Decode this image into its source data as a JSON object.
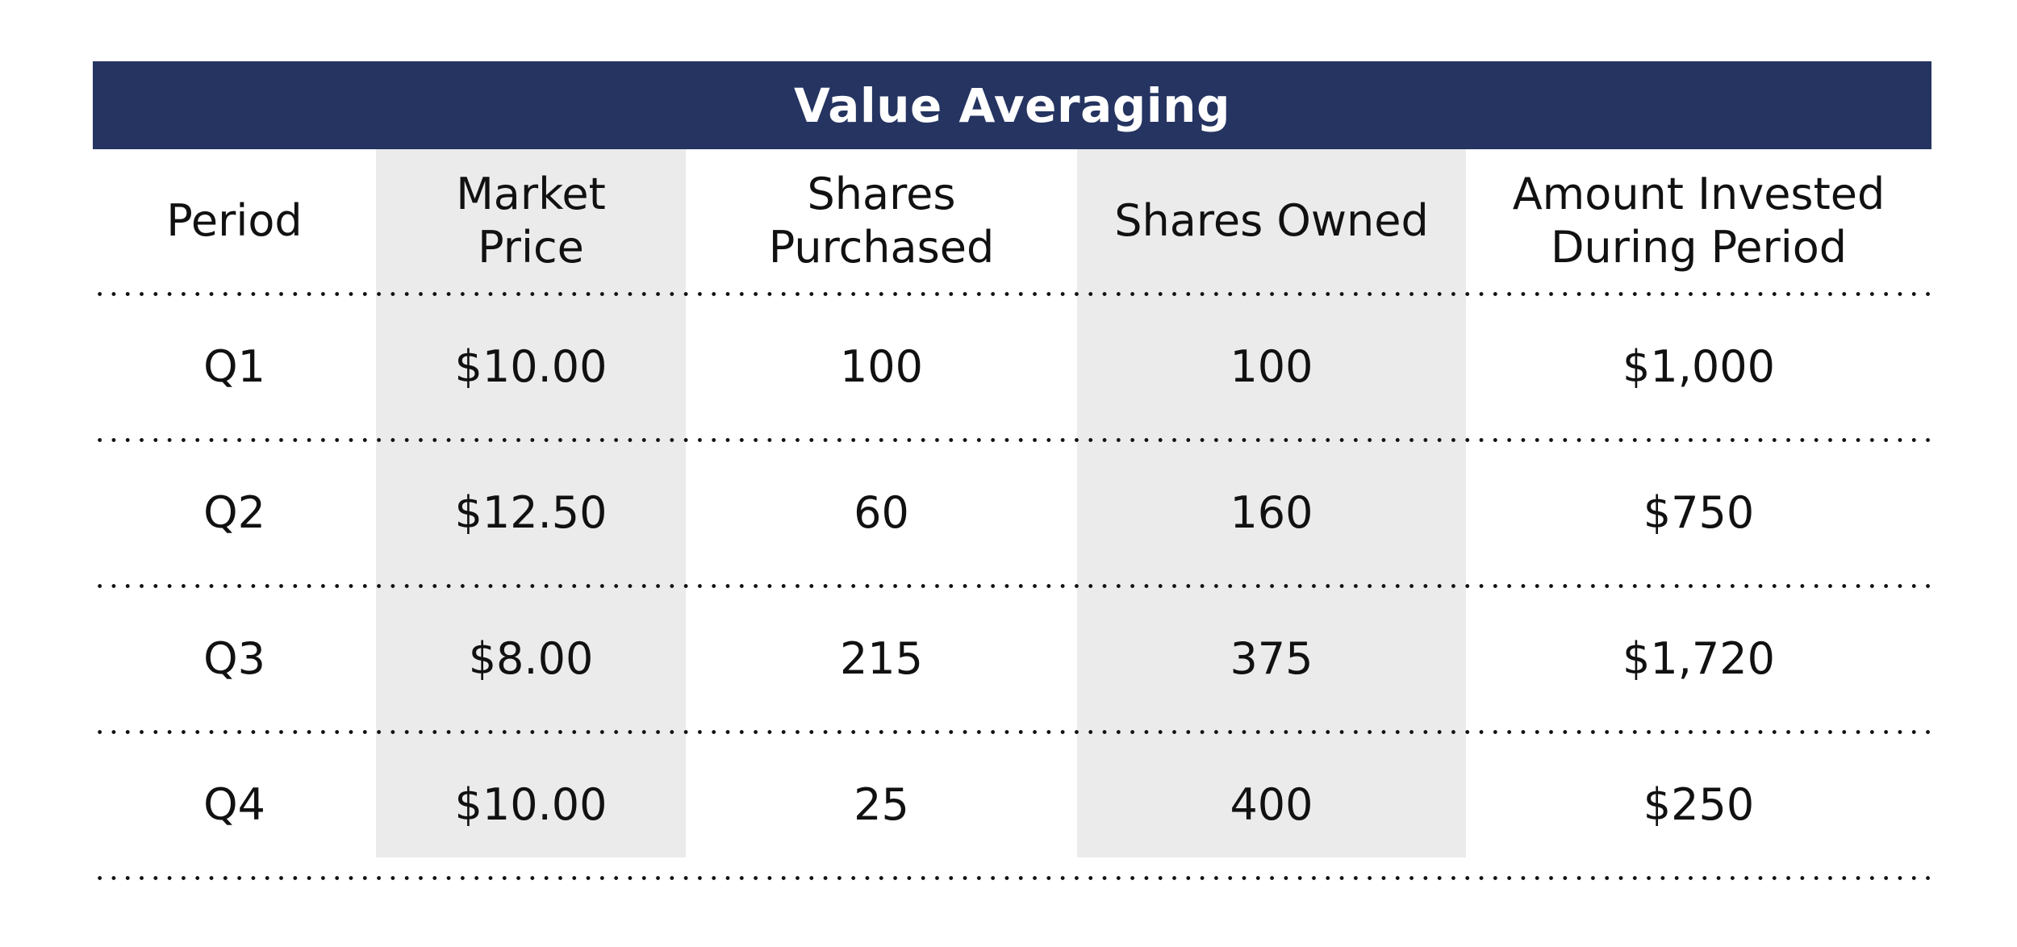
{
  "chart_data": {
    "type": "table",
    "title": "Value Averaging",
    "columns": [
      "Period",
      "Market\nPrice",
      "Shares\nPurchased",
      "Shares Owned",
      "Amount Invested\nDuring Period"
    ],
    "rows": [
      [
        "Q1",
        "$10.00",
        "100",
        "100",
        "$1,000"
      ],
      [
        "Q2",
        "$12.50",
        "60",
        "160",
        "$750"
      ],
      [
        "Q3",
        "$8.00",
        "215",
        "375",
        "$1,720"
      ],
      [
        "Q4",
        "$10.00",
        "25",
        "400",
        "$250"
      ]
    ],
    "shaded_columns": [
      1,
      3
    ]
  },
  "colors": {
    "header_band": "#253461",
    "header_text": "#ffffff",
    "shaded_column": "#ebebeb",
    "text": "#111111",
    "separator": "#111111"
  }
}
